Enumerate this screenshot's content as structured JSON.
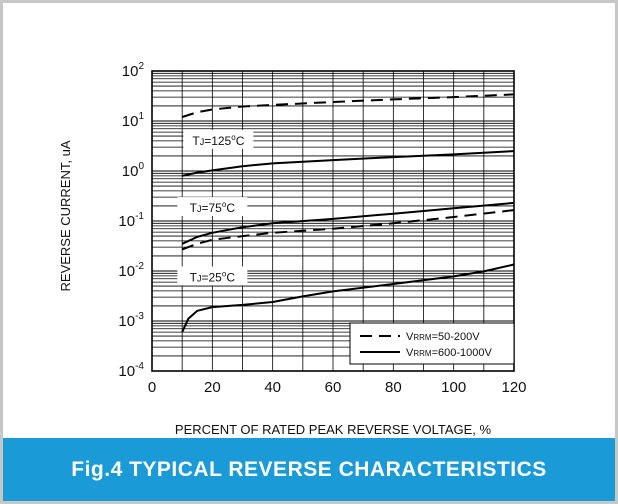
{
  "caption": "Fig.4 TYPICAL REVERSE CHARACTERISTICS",
  "chart_data": {
    "type": "line",
    "title": "",
    "xlabel": "PERCENT OF RATED PEAK REVERSE VOLTAGE, %",
    "ylabel": "REVERSE CURRENT, uA",
    "yscale": "log",
    "xlim": [
      0,
      120
    ],
    "ylim": [
      0.0001,
      100
    ],
    "grid": true,
    "legend_position": "bottom-right",
    "x_ticks": [
      "0",
      "20",
      "40",
      "60",
      "80",
      "100",
      "120"
    ],
    "y_ticks": [
      {
        "base": "10",
        "exp": "2",
        "value": 100
      },
      {
        "base": "10",
        "exp": "1",
        "value": 10
      },
      {
        "base": "10",
        "exp": "0",
        "value": 1
      },
      {
        "base": "10",
        "exp": "-1",
        "value": 0.1
      },
      {
        "base": "10",
        "exp": "-2",
        "value": 0.01
      },
      {
        "base": "10",
        "exp": "-3",
        "value": 0.001
      },
      {
        "base": "10",
        "exp": "-4",
        "value": 0.0001
      }
    ],
    "legend": [
      {
        "label_prefix": "V",
        "label_sub": "RRM",
        "label_rest": "=50-200V",
        "style": "dashed"
      },
      {
        "label_prefix": "V",
        "label_sub": "RRM",
        "label_rest": "=600-1000V",
        "style": "solid"
      }
    ],
    "annotations": [
      {
        "prefix": "T",
        "sub": "J",
        "rest": "=125",
        "sup": "o",
        "unit": "C",
        "x": 22,
        "y": 4.2
      },
      {
        "prefix": "T",
        "sub": "J",
        "rest": "=75",
        "sup": "o",
        "unit": "C",
        "x": 20,
        "y": 0.19
      },
      {
        "prefix": "T",
        "sub": "J",
        "rest": "=25",
        "sup": "o",
        "unit": "C",
        "x": 20,
        "y": 0.0078
      }
    ],
    "series": [
      {
        "group": "TJ=125C",
        "style": "dashed",
        "x": [
          10,
          15,
          20,
          30,
          40,
          60,
          80,
          100,
          120
        ],
        "y": [
          12,
          15,
          17,
          19.5,
          21,
          24,
          27,
          30,
          34
        ]
      },
      {
        "group": "TJ=125C",
        "style": "solid",
        "x": [
          10,
          15,
          20,
          30,
          40,
          60,
          80,
          100,
          120
        ],
        "y": [
          0.8,
          0.93,
          1.03,
          1.25,
          1.42,
          1.65,
          1.9,
          2.15,
          2.5
        ]
      },
      {
        "group": "TJ=75C",
        "style": "solid",
        "x": [
          10,
          15,
          20,
          30,
          40,
          60,
          80,
          100,
          120
        ],
        "y": [
          0.035,
          0.048,
          0.058,
          0.075,
          0.09,
          0.11,
          0.14,
          0.18,
          0.23
        ]
      },
      {
        "group": "TJ=75C",
        "style": "dashed",
        "x": [
          10,
          15,
          20,
          30,
          40,
          60,
          80,
          100,
          120
        ],
        "y": [
          0.027,
          0.035,
          0.042,
          0.05,
          0.058,
          0.07,
          0.09,
          0.12,
          0.165
        ]
      },
      {
        "group": "TJ=25C",
        "style": "solid",
        "x": [
          10,
          12,
          15,
          20,
          30,
          40,
          50,
          60,
          80,
          100,
          110,
          120
        ],
        "y": [
          0.0006,
          0.0011,
          0.0016,
          0.0019,
          0.0021,
          0.0024,
          0.0031,
          0.0039,
          0.0055,
          0.0078,
          0.0098,
          0.0135
        ]
      }
    ]
  }
}
